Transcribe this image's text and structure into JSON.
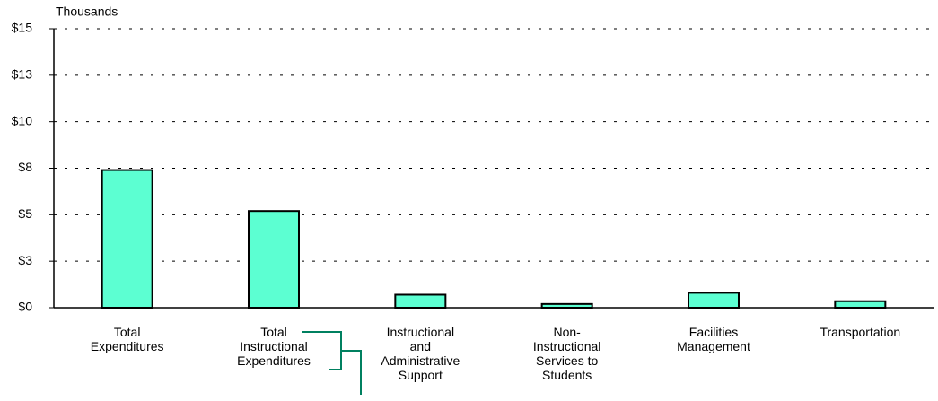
{
  "chart_data": {
    "type": "bar",
    "y_axis_label": "Thousands",
    "categories": [
      "Total Expenditures",
      "Total Instructional Expenditures",
      "Instructional and Administrative Support",
      "Non-Instructional Services to Students",
      "Facilities Management",
      "Transportation"
    ],
    "values": [
      7.4,
      5.2,
      0.7,
      0.2,
      0.8,
      0.35
    ],
    "color": "#5cffd2",
    "ylim": [
      0,
      15
    ],
    "yticks": [
      {
        "value": 0,
        "label": "$0"
      },
      {
        "value": 2.5,
        "label": "$3"
      },
      {
        "value": 5,
        "label": "$5"
      },
      {
        "value": 7.5,
        "label": "$8"
      },
      {
        "value": 10,
        "label": "$10"
      },
      {
        "value": 12.5,
        "label": "$13"
      },
      {
        "value": 15,
        "label": "$15"
      }
    ],
    "grid": true
  }
}
